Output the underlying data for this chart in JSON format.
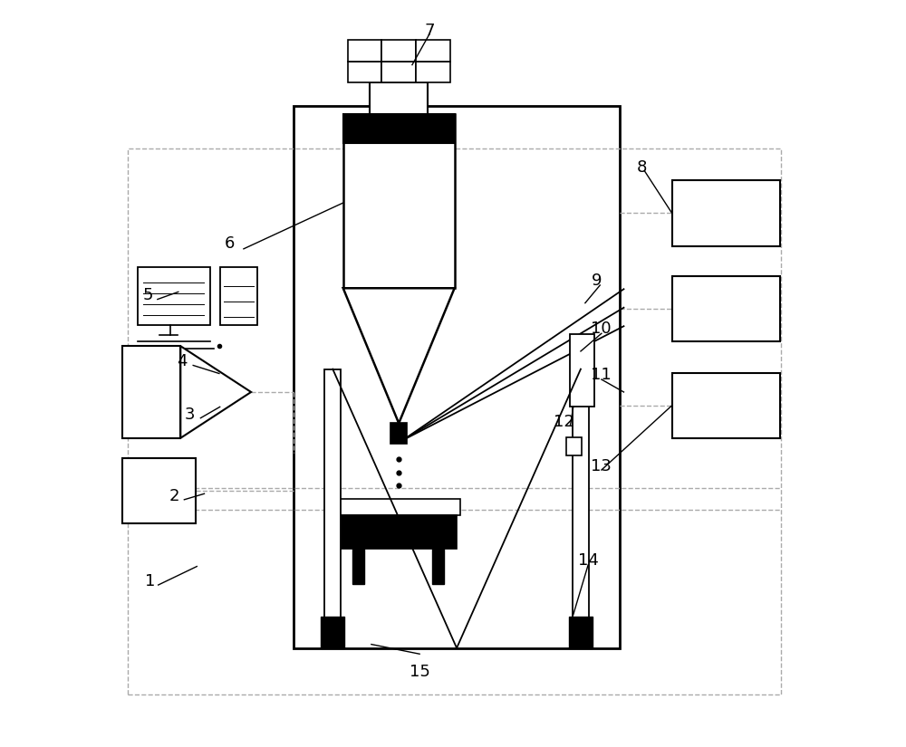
{
  "bg_color": "#ffffff",
  "line_color": "#000000",
  "dashed_color": "#aaaaaa",
  "fig_width": 10.0,
  "fig_height": 8.25
}
